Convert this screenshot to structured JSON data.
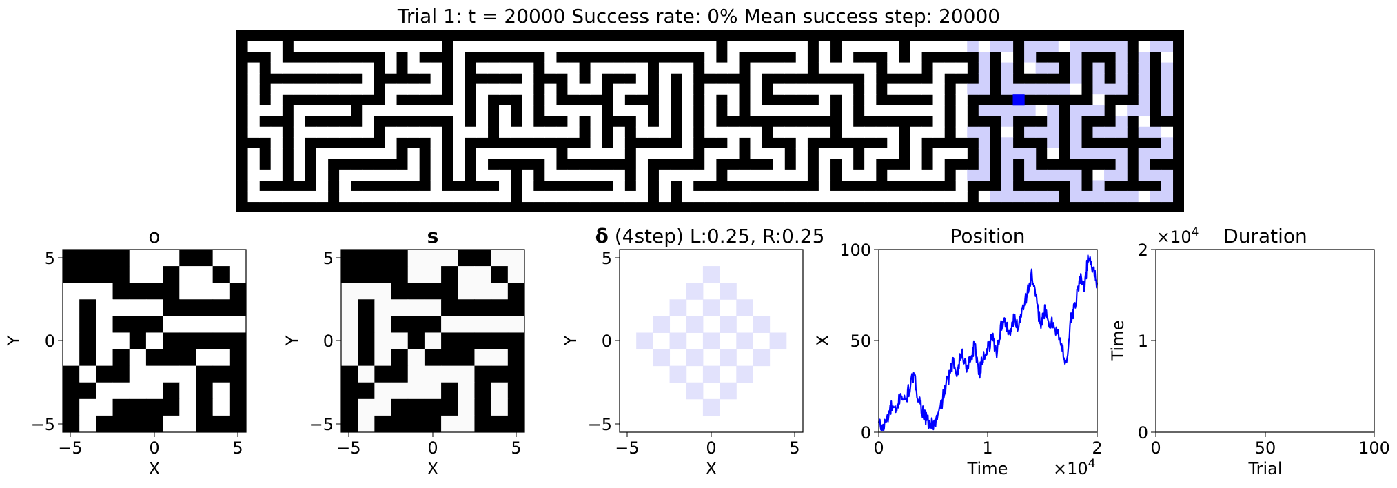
{
  "figure": {
    "title": "Trial 1: t = 20000  Success rate: 0%  Mean success step: 20000"
  },
  "colors": {
    "wall": "#000000",
    "floor": "#ffffff",
    "visited": "#d0d0fc",
    "agent": "#0000ff",
    "delta": "#e2e2fc",
    "line": "#0000ff"
  },
  "chart_data": [
    {
      "type": "heatmap",
      "name": "maze",
      "description_free": true,
      "rows": 17,
      "cols": 83,
      "agent_cell": [
        6,
        68
      ],
      "visited_region": "right portion of maze, columns ~64-82"
    },
    {
      "type": "heatmap",
      "name": "observation",
      "title": "o",
      "xlabel": "X",
      "ylabel": "Y",
      "xlim": [
        -5.5,
        5.5
      ],
      "ylim": [
        -5.5,
        5.5
      ],
      "xticks": [
        "−5",
        "0",
        "5"
      ],
      "yticks": [
        "−5",
        "0",
        "5"
      ],
      "grid": [
        "00001110011",
        "00001101101",
        "11100001110",
        "10111100000",
        "10100011111",
        "10110100000",
        "10101000110",
        "01001111000",
        "00111101010",
        "01100001010",
        "01000011000"
      ]
    },
    {
      "type": "heatmap",
      "name": "state",
      "title": "s",
      "xlabel": "X",
      "ylabel": "Y",
      "xlim": [
        -5.5,
        5.5
      ],
      "ylim": [
        -5.5,
        5.5
      ],
      "xticks": [
        "−5",
        "0",
        "5"
      ],
      "yticks": [
        "−5",
        "0",
        "5"
      ]
    },
    {
      "type": "heatmap",
      "name": "delta",
      "title_symbol": "δ",
      "title_rest": " (4step) L:0.25, R:0.25",
      "xlabel": "X",
      "ylabel": "Y",
      "xlim": [
        -5.5,
        5.5
      ],
      "ylim": [
        -5.5,
        5.5
      ],
      "xticks": [
        "−5",
        "0",
        "5"
      ],
      "yticks": [
        "−5",
        "0",
        "5"
      ],
      "pattern": "checkerboard diamond, |x|+|y| <= 4, cells with x+y even"
    },
    {
      "type": "line",
      "name": "position",
      "title": "Position",
      "xlabel": "Time",
      "ylabel": "X",
      "xlim": [
        0,
        20000
      ],
      "ylim": [
        0,
        100
      ],
      "xticks": [
        "0",
        "1",
        "2"
      ],
      "yticks": [
        "0",
        "50",
        "100"
      ],
      "x_multiplier": "×10",
      "x_multiplier_exp": "4",
      "series": [
        {
          "x": [
            0,
            400,
            800,
            1200,
            1600,
            2000,
            2400,
            2800,
            3200,
            3600,
            4000,
            4400,
            4800,
            5200,
            5600,
            6000,
            6400,
            6800,
            7200,
            7600,
            8000,
            8400,
            8800,
            9200,
            9600,
            10000,
            10400,
            10800,
            11200,
            11600,
            12000,
            12400,
            12800,
            13200,
            13600,
            14000,
            14400,
            14800,
            15200,
            15600,
            16000,
            16400,
            16800,
            17200,
            17600,
            18000,
            18400,
            18800,
            19200,
            19600,
            20000
          ],
          "y": [
            5,
            2,
            8,
            14,
            10,
            22,
            16,
            24,
            31,
            20,
            12,
            6,
            4,
            5,
            12,
            22,
            30,
            38,
            34,
            44,
            36,
            40,
            48,
            32,
            42,
            46,
            52,
            44,
            58,
            60,
            54,
            62,
            58,
            70,
            76,
            86,
            72,
            60,
            66,
            58,
            60,
            54,
            45,
            38,
            62,
            70,
            84,
            80,
            96,
            90,
            82
          ]
        }
      ]
    },
    {
      "type": "line",
      "name": "duration",
      "title": "Duration",
      "xlabel": "Trial",
      "ylabel": "Time",
      "xlim": [
        0,
        100
      ],
      "ylim": [
        0,
        20000
      ],
      "xticks": [
        "0",
        "50",
        "100"
      ],
      "yticks": [
        "0",
        "1",
        "2"
      ],
      "y_multiplier": "×10",
      "y_multiplier_exp": "4",
      "series": []
    }
  ]
}
